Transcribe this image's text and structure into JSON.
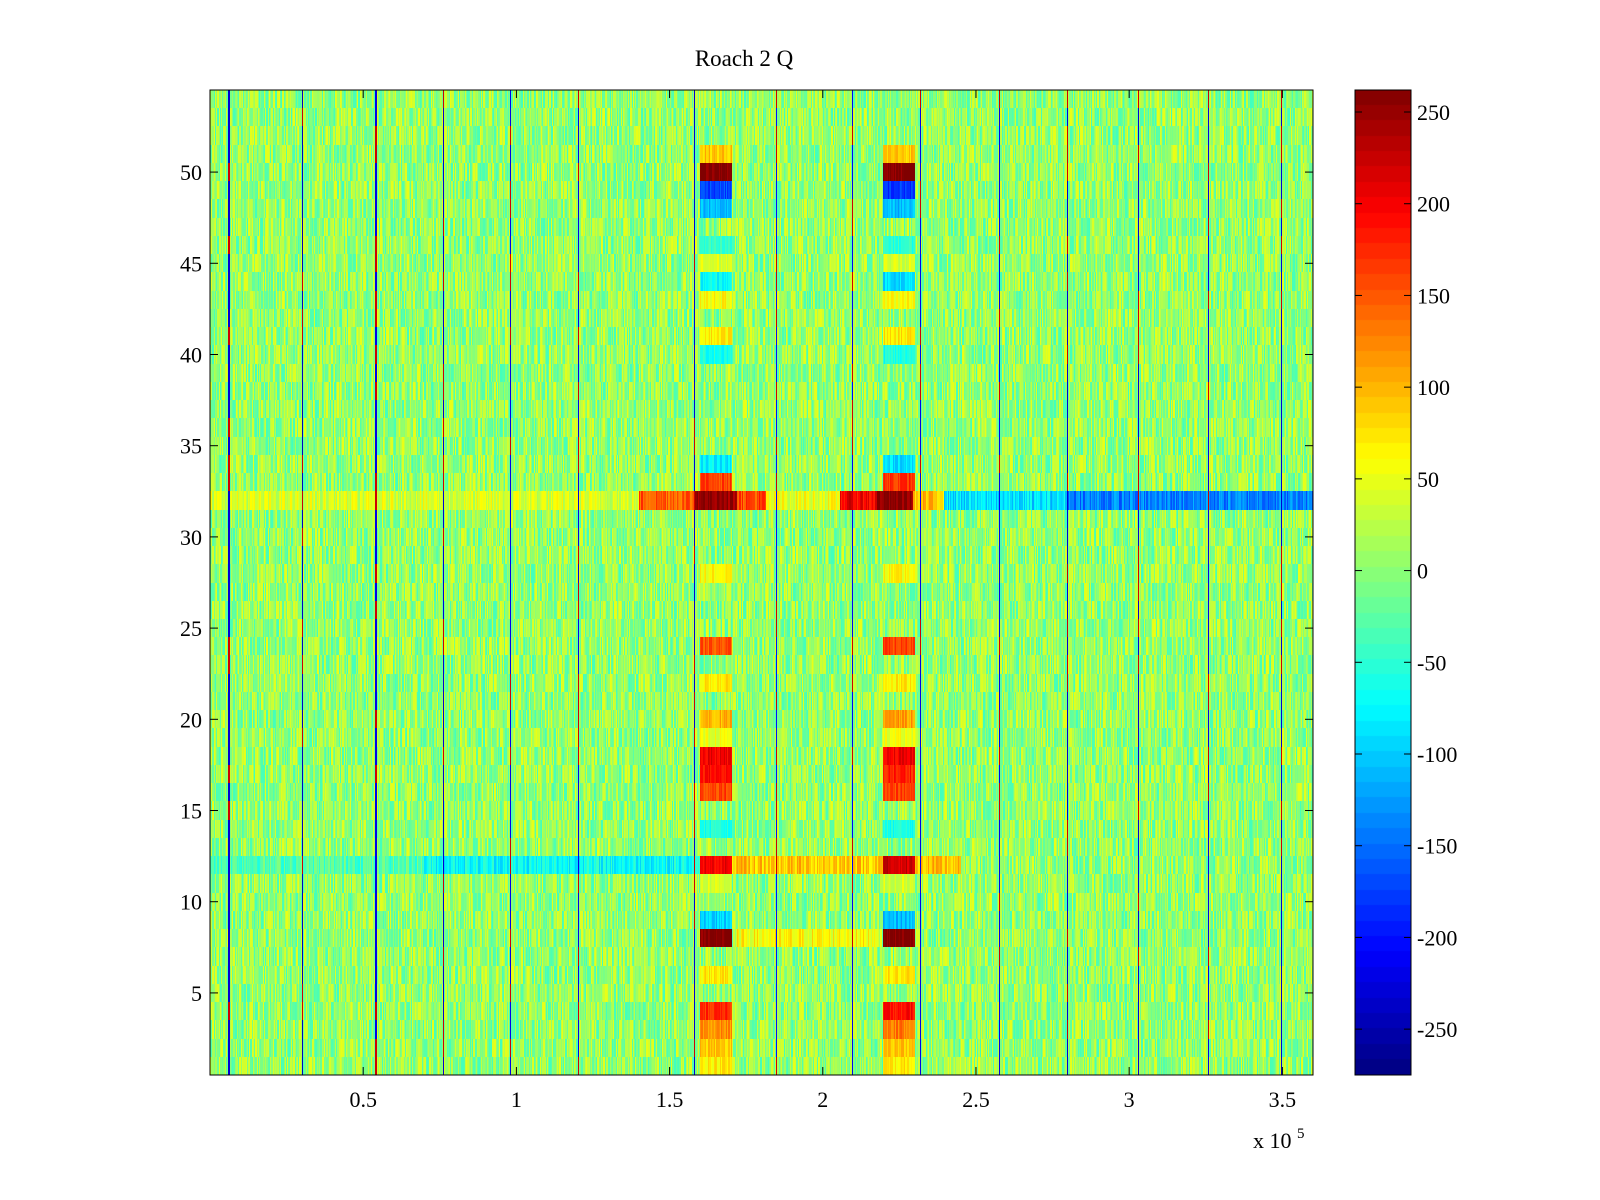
{
  "chart_data": {
    "type": "heatmap",
    "title": "Roach 2 Q",
    "xlabel": "",
    "ylabel": "",
    "x_exponent_label": "x 10",
    "x_exponent_power": "5",
    "xlim": [
      0,
      3.6
    ],
    "ylim": [
      0.5,
      54.5
    ],
    "xticks": [
      0.5,
      1,
      1.5,
      2,
      2.5,
      3,
      3.5
    ],
    "xtick_labels": [
      "0.5",
      "1",
      "1.5",
      "2",
      "2.5",
      "3",
      "3.5"
    ],
    "yticks": [
      5,
      10,
      15,
      20,
      25,
      30,
      35,
      40,
      45,
      50
    ],
    "ytick_labels": [
      "5",
      "10",
      "15",
      "20",
      "25",
      "30",
      "35",
      "40",
      "45",
      "50"
    ],
    "rows": 54,
    "colorbar": {
      "colormap": "jet",
      "clim": [
        -275,
        262
      ],
      "ticks": [
        250,
        200,
        150,
        100,
        50,
        0,
        -50,
        -100,
        -150,
        -200,
        -250
      ],
      "tick_labels": [
        "250",
        "200",
        "150",
        "100",
        "50",
        "0",
        "-50",
        "-100",
        "-150",
        "-200",
        "-250"
      ]
    },
    "background_level": 5,
    "noise_amplitude": 45,
    "vertical_lines": [
      {
        "x": 0.06,
        "value": -230
      },
      {
        "x": 0.3,
        "value": -240
      },
      {
        "x": 0.54,
        "value": -220
      },
      {
        "x": 0.76,
        "value": -230
      },
      {
        "x": 0.98,
        "value": -220
      },
      {
        "x": 1.2,
        "value": -220
      },
      {
        "x": 1.58,
        "value": -230
      },
      {
        "x": 1.85,
        "value": -200
      },
      {
        "x": 2.1,
        "value": -210
      },
      {
        "x": 2.32,
        "value": -220
      },
      {
        "x": 2.58,
        "value": -220
      },
      {
        "x": 2.8,
        "value": -230
      },
      {
        "x": 3.03,
        "value": -230
      },
      {
        "x": 3.26,
        "value": -220
      },
      {
        "x": 3.5,
        "value": -230
      }
    ],
    "horizontal_bands": [
      {
        "row": 32,
        "segments": [
          {
            "x_start": 0.0,
            "x_end": 1.4,
            "value": 40
          },
          {
            "x_start": 1.4,
            "x_end": 1.58,
            "value": 150
          },
          {
            "x_start": 1.58,
            "x_end": 1.72,
            "value": 260
          },
          {
            "x_start": 1.72,
            "x_end": 1.82,
            "value": 160
          },
          {
            "x_start": 1.82,
            "x_end": 2.06,
            "value": 50
          },
          {
            "x_start": 2.06,
            "x_end": 2.18,
            "value": 200
          },
          {
            "x_start": 2.18,
            "x_end": 2.3,
            "value": 262
          },
          {
            "x_start": 2.3,
            "x_end": 2.4,
            "value": 90
          },
          {
            "x_start": 2.4,
            "x_end": 2.8,
            "value": -90
          },
          {
            "x_start": 2.8,
            "x_end": 3.6,
            "value": -140
          }
        ]
      },
      {
        "row": 12,
        "segments": [
          {
            "x_start": 0.0,
            "x_end": 0.7,
            "value": -30
          },
          {
            "x_start": 0.7,
            "x_end": 1.6,
            "value": -70
          },
          {
            "x_start": 1.6,
            "x_end": 2.45,
            "value": 90
          }
        ]
      },
      {
        "row": 8,
        "segments": [
          {
            "x_start": 1.72,
            "x_end": 2.18,
            "value": 60
          }
        ]
      }
    ],
    "column_blocks": [
      {
        "x_start": 1.6,
        "x_end": 1.7,
        "rows": [
          {
            "row": 51,
            "value": 90
          },
          {
            "row": 50,
            "value": 260
          },
          {
            "row": 49,
            "value": -170
          },
          {
            "row": 48,
            "value": -110
          },
          {
            "row": 46,
            "value": -50
          },
          {
            "row": 45,
            "value": 40
          },
          {
            "row": 44,
            "value": -70
          },
          {
            "row": 43,
            "value": 60
          },
          {
            "row": 41,
            "value": 70
          },
          {
            "row": 40,
            "value": -60
          },
          {
            "row": 34,
            "value": -80
          },
          {
            "row": 33,
            "value": 160
          },
          {
            "row": 28,
            "value": 60
          },
          {
            "row": 24,
            "value": 150
          },
          {
            "row": 22,
            "value": 70
          },
          {
            "row": 20,
            "value": 100
          },
          {
            "row": 19,
            "value": 50
          },
          {
            "row": 18,
            "value": 200
          },
          {
            "row": 17,
            "value": 190
          },
          {
            "row": 16,
            "value": 160
          },
          {
            "row": 14,
            "value": -60
          },
          {
            "row": 12,
            "value": 200
          },
          {
            "row": 11,
            "value": 40
          },
          {
            "row": 9,
            "value": -100
          },
          {
            "row": 8,
            "value": 262
          },
          {
            "row": 6,
            "value": 70
          },
          {
            "row": 4,
            "value": 170
          },
          {
            "row": 3,
            "value": 120
          },
          {
            "row": 2,
            "value": 90
          },
          {
            "row": 1,
            "value": 70
          }
        ]
      },
      {
        "x_start": 2.2,
        "x_end": 2.3,
        "rows": [
          {
            "row": 51,
            "value": 90
          },
          {
            "row": 50,
            "value": 260
          },
          {
            "row": 49,
            "value": -180
          },
          {
            "row": 48,
            "value": -110
          },
          {
            "row": 46,
            "value": -50
          },
          {
            "row": 45,
            "value": 40
          },
          {
            "row": 44,
            "value": -90
          },
          {
            "row": 43,
            "value": 60
          },
          {
            "row": 41,
            "value": 70
          },
          {
            "row": 40,
            "value": -60
          },
          {
            "row": 34,
            "value": -90
          },
          {
            "row": 33,
            "value": 170
          },
          {
            "row": 28,
            "value": 60
          },
          {
            "row": 24,
            "value": 160
          },
          {
            "row": 22,
            "value": 70
          },
          {
            "row": 20,
            "value": 110
          },
          {
            "row": 19,
            "value": 50
          },
          {
            "row": 18,
            "value": 200
          },
          {
            "row": 17,
            "value": 180
          },
          {
            "row": 16,
            "value": 160
          },
          {
            "row": 14,
            "value": -60
          },
          {
            "row": 12,
            "value": 220
          },
          {
            "row": 11,
            "value": 40
          },
          {
            "row": 9,
            "value": -110
          },
          {
            "row": 8,
            "value": 262
          },
          {
            "row": 6,
            "value": 70
          },
          {
            "row": 4,
            "value": 190
          },
          {
            "row": 3,
            "value": 130
          },
          {
            "row": 2,
            "value": 90
          },
          {
            "row": 1,
            "value": 70
          }
        ]
      }
    ]
  }
}
